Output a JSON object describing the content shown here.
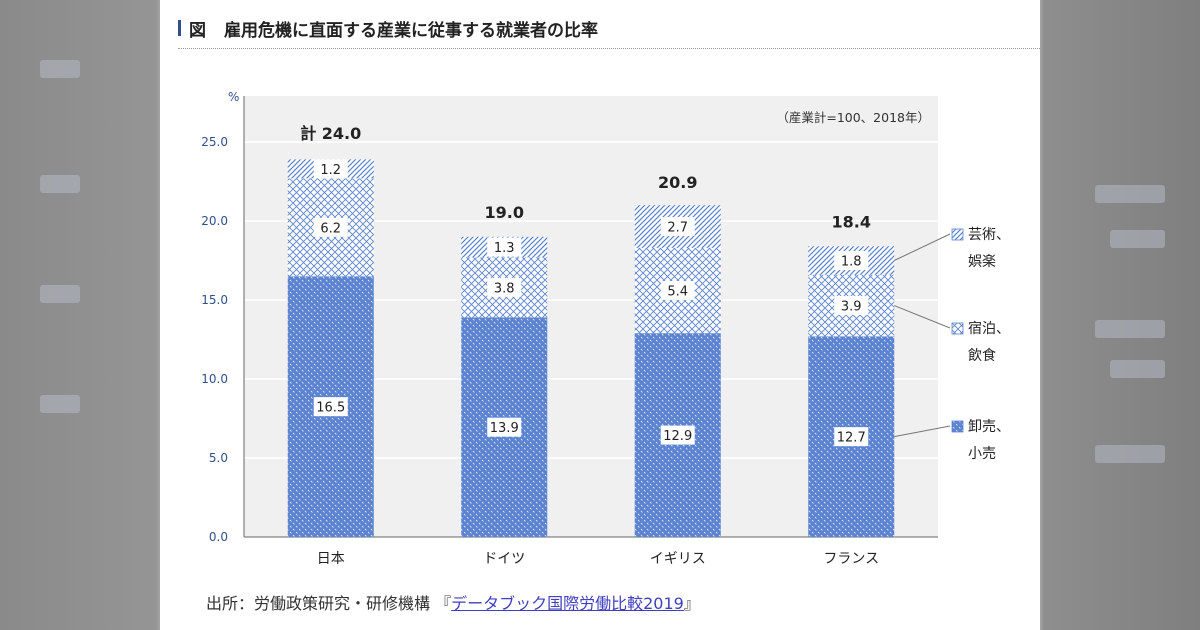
{
  "figure": {
    "label": "図",
    "title": "雇用危機に直面する産業に従事する就業者の比率"
  },
  "source": {
    "prefix": "出所：労働政策研究・研修機構",
    "open_bracket": "『",
    "link_text": "データブック国際労働比較2019",
    "close_bracket": "』"
  },
  "colors": {
    "retail": "#5b83d0",
    "hatch": "#5b83d0",
    "plot_bg": "#f0f0f0",
    "axis_text": "#2f4f8f"
  },
  "chart_data": {
    "type": "bar",
    "stacked": true,
    "title": "雇用危機に直面する産業に従事する就業者の比率",
    "unit_label": "%",
    "note": "（産業計=100、2018年）",
    "categories": [
      "日本",
      "ドイツ",
      "イギリス",
      "フランス"
    ],
    "series": [
      {
        "name": "卸売、小売",
        "legend_lines": [
          "卸売、",
          "小売"
        ],
        "pattern": "dots",
        "values": [
          16.5,
          13.9,
          12.9,
          12.7
        ]
      },
      {
        "name": "宿泊、飲食",
        "legend_lines": [
          "宿泊、",
          "飲食"
        ],
        "pattern": "cross",
        "values": [
          6.2,
          3.8,
          5.4,
          3.9
        ]
      },
      {
        "name": "芸術、娯楽",
        "legend_lines": [
          "芸術、",
          "娯楽"
        ],
        "pattern": "diag",
        "values": [
          1.2,
          1.3,
          2.7,
          1.8
        ]
      }
    ],
    "totals": [
      24.0,
      19.0,
      20.9,
      18.4
    ],
    "total_labels": [
      "計 24.0",
      "19.0",
      "20.9",
      "18.4"
    ],
    "ylim": [
      0,
      28
    ],
    "yticks": [
      0.0,
      5.0,
      10.0,
      15.0,
      20.0,
      25.0
    ],
    "ytick_labels": [
      "0.0",
      "5.0",
      "10.0",
      "15.0",
      "20.0",
      "25.0"
    ],
    "xlabel": "",
    "ylabel": "%",
    "legend_position": "right",
    "grid": true
  }
}
